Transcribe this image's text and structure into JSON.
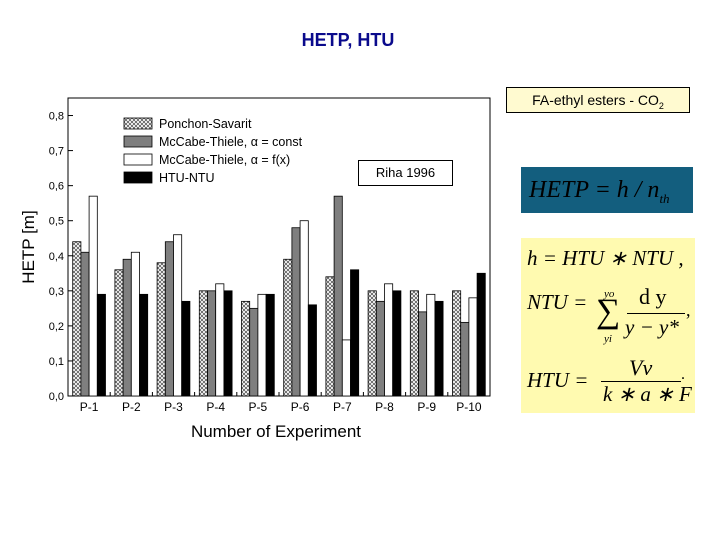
{
  "slide": {
    "title": "HETP, HTU",
    "subtitle": "FA-ethyl esters - CO",
    "subtitle_sub": "2",
    "source_note": "Riha 1996"
  },
  "equations": {
    "hetp_main": "HETP = h / n",
    "hetp_sub": "th",
    "h_eq": "h = HTU ∗ NTU ,",
    "ntu_lhs": "NTU =",
    "sum": "∑",
    "sum_upper": "yo",
    "sum_lower": "yi",
    "ntu_num": "d y",
    "ntu_den": "y − y*",
    "ntu_end": ",",
    "htu_lhs": "HTU =",
    "htu_num": "Vv",
    "htu_den": "k ∗ a ∗ F",
    "htu_end": "."
  },
  "colors": {
    "title": "#0a0a8c",
    "hetp_box_bg": "#135e7e",
    "eq_box_bg": "#fffab0",
    "subtitle_box_bg": "#fffad0",
    "series_dark_gray": "#7f7f7f",
    "series_black": "#000000"
  },
  "chart_data": {
    "type": "bar",
    "categories": [
      "P-1",
      "P-2",
      "P-3",
      "P-4",
      "P-5",
      "P-6",
      "P-7",
      "P-8",
      "P-9",
      "P-10"
    ],
    "series": [
      {
        "name": "Ponchon-Savarit",
        "fill": "crosshatch",
        "values": [
          0.44,
          0.36,
          0.38,
          0.3,
          0.27,
          0.39,
          0.34,
          0.3,
          0.3,
          0.3
        ]
      },
      {
        "name": "McCabe-Thiele, α = const",
        "fill": "dark-gray",
        "values": [
          0.41,
          0.39,
          0.44,
          0.3,
          0.25,
          0.48,
          0.57,
          0.27,
          0.24,
          0.21
        ]
      },
      {
        "name": "McCabe-Thiele, α = f(x)",
        "fill": "white",
        "values": [
          0.57,
          0.41,
          0.46,
          0.32,
          0.29,
          0.5,
          0.16,
          0.32,
          0.29,
          0.28
        ]
      },
      {
        "name": "HTU-NTU",
        "fill": "black",
        "values": [
          0.29,
          0.29,
          0.27,
          0.3,
          0.29,
          0.26,
          0.36,
          0.3,
          0.27,
          0.35
        ]
      }
    ],
    "xlabel": "Number of Experiment",
    "ylabel": "HETP [m]",
    "ylim": [
      0,
      0.85
    ],
    "yticks": [
      "0,0",
      "0,1",
      "0,2",
      "0,3",
      "0,4",
      "0,5",
      "0,6",
      "0,7",
      "0,8"
    ],
    "legend_position": "top-left",
    "grid": false
  }
}
